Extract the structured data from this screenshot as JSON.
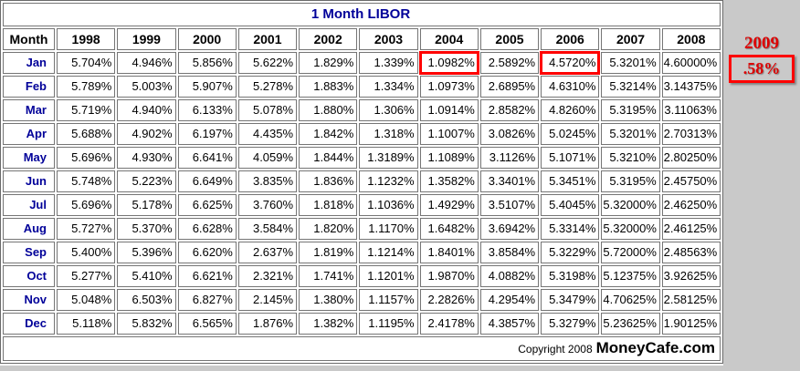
{
  "title": "1 Month LIBOR",
  "table": {
    "month_header": "Month",
    "years": [
      "1998",
      "1999",
      "2000",
      "2001",
      "2002",
      "2003",
      "2004",
      "2005",
      "2006",
      "2007",
      "2008"
    ],
    "rows": [
      {
        "month": "Jan",
        "values": [
          "5.704%",
          "4.946%",
          "5.856%",
          "5.622%",
          "1.829%",
          "1.339%",
          "1.0982%",
          "2.5892%",
          "4.5720%",
          "5.3201%",
          "4.60000%"
        ]
      },
      {
        "month": "Feb",
        "values": [
          "5.789%",
          "5.003%",
          "5.907%",
          "5.278%",
          "1.883%",
          "1.334%",
          "1.0973%",
          "2.6895%",
          "4.6310%",
          "5.3214%",
          "3.14375%"
        ]
      },
      {
        "month": "Mar",
        "values": [
          "5.719%",
          "4.940%",
          "6.133%",
          "5.078%",
          "1.880%",
          "1.306%",
          "1.0914%",
          "2.8582%",
          "4.8260%",
          "5.3195%",
          "3.11063%"
        ]
      },
      {
        "month": "Apr",
        "values": [
          "5.688%",
          "4.902%",
          "6.197%",
          "4.435%",
          "1.842%",
          "1.318%",
          "1.1007%",
          "3.0826%",
          "5.0245%",
          "5.3201%",
          "2.70313%"
        ]
      },
      {
        "month": "May",
        "values": [
          "5.696%",
          "4.930%",
          "6.641%",
          "4.059%",
          "1.844%",
          "1.3189%",
          "1.1089%",
          "3.1126%",
          "5.1071%",
          "5.3210%",
          "2.80250%"
        ]
      },
      {
        "month": "Jun",
        "values": [
          "5.748%",
          "5.223%",
          "6.649%",
          "3.835%",
          "1.836%",
          "1.1232%",
          "1.3582%",
          "3.3401%",
          "5.3451%",
          "5.3195%",
          "2.45750%"
        ]
      },
      {
        "month": "Jul",
        "values": [
          "5.696%",
          "5.178%",
          "6.625%",
          "3.760%",
          "1.818%",
          "1.1036%",
          "1.4929%",
          "3.5107%",
          "5.4045%",
          "5.32000%",
          "2.46250%"
        ]
      },
      {
        "month": "Aug",
        "values": [
          "5.727%",
          "5.370%",
          "6.628%",
          "3.584%",
          "1.820%",
          "1.1170%",
          "1.6482%",
          "3.6942%",
          "5.3314%",
          "5.32000%",
          "2.46125%"
        ]
      },
      {
        "month": "Sep",
        "values": [
          "5.400%",
          "5.396%",
          "6.620%",
          "2.637%",
          "1.819%",
          "1.1214%",
          "1.8401%",
          "3.8584%",
          "5.3229%",
          "5.72000%",
          "2.48563%"
        ]
      },
      {
        "month": "Oct",
        "values": [
          "5.277%",
          "5.410%",
          "6.621%",
          "2.321%",
          "1.741%",
          "1.1201%",
          "1.9870%",
          "4.0882%",
          "5.3198%",
          "5.12375%",
          "3.92625%"
        ]
      },
      {
        "month": "Nov",
        "values": [
          "5.048%",
          "6.503%",
          "6.827%",
          "2.145%",
          "1.380%",
          "1.1157%",
          "2.2826%",
          "4.2954%",
          "5.3479%",
          "4.70625%",
          "2.58125%"
        ]
      },
      {
        "month": "Dec",
        "values": [
          "5.118%",
          "5.832%",
          "6.565%",
          "1.876%",
          "1.382%",
          "1.1195%",
          "2.4178%",
          "4.3857%",
          "5.3279%",
          "5.23625%",
          "1.90125%"
        ]
      }
    ],
    "highlighted_cells": [
      {
        "month": "Jan",
        "year": "2004"
      },
      {
        "month": "Jan",
        "year": "2006"
      }
    ]
  },
  "footer": {
    "copyright": "Copyright 2008",
    "brand": "MoneyCafe.com"
  },
  "sidebar_2009": {
    "year": "2009",
    "rate": ".58%"
  },
  "colors": {
    "page_background": "#c9c9c9",
    "table_background": "#ffffff",
    "cell_border": "#757575",
    "title_navy": "#000099",
    "month_label_navy": "#000099",
    "highlight_red": "#ff0000",
    "sidebar_red": "#dd0000"
  }
}
